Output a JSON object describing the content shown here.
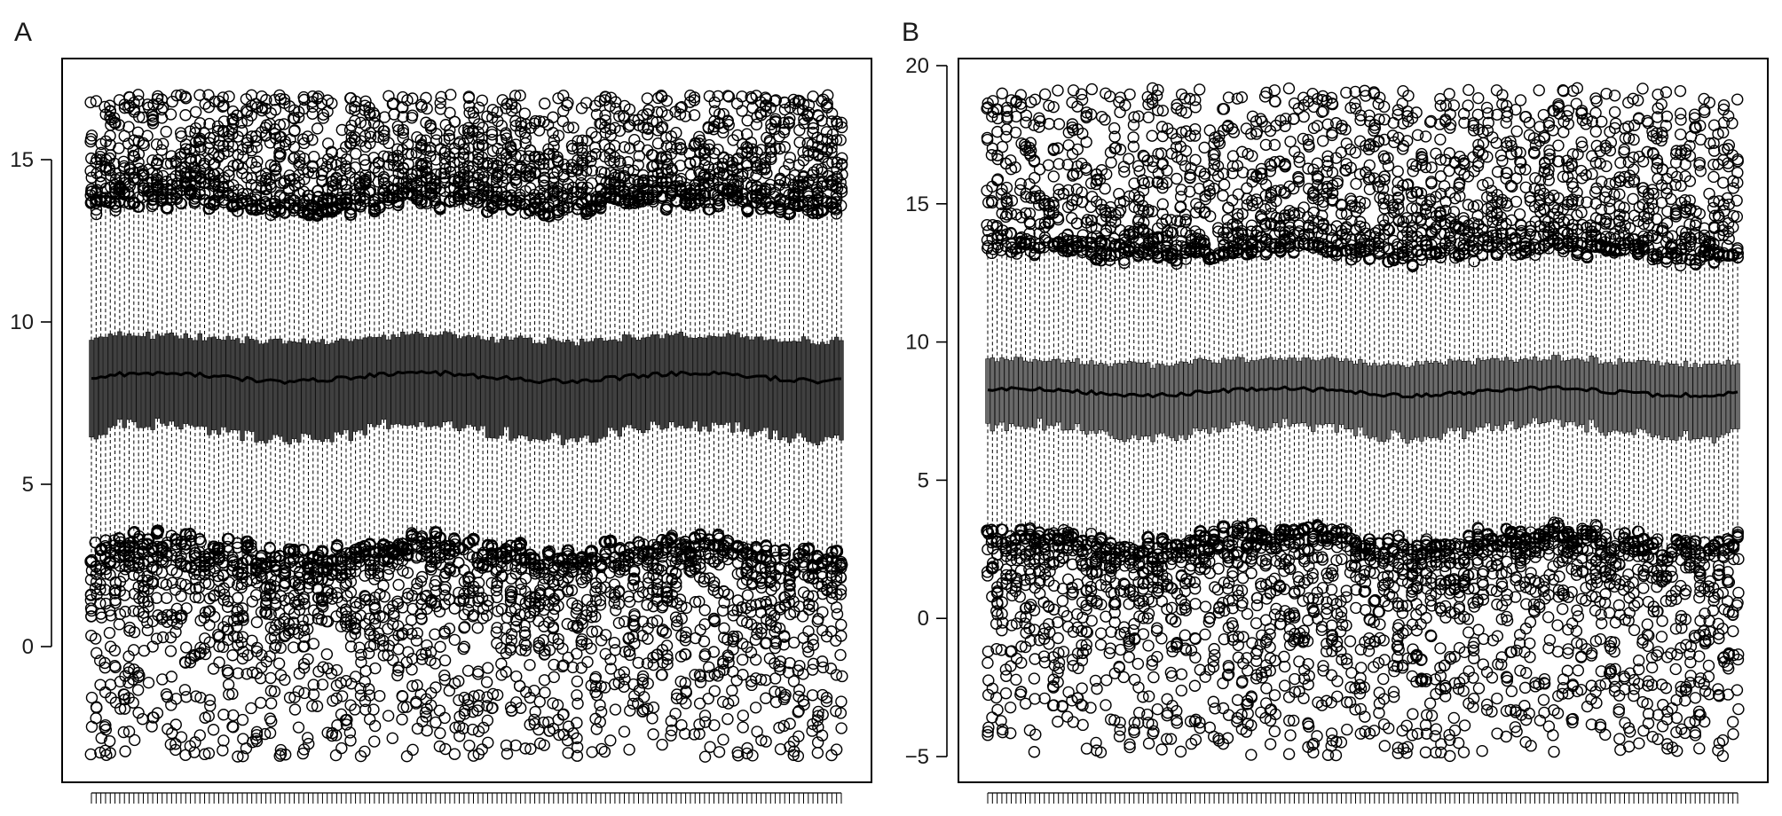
{
  "chart_data": [
    {
      "panel_label": "A",
      "type": "box",
      "n_boxes": 160,
      "ylim": [
        -3.8,
        17.3
      ],
      "y_ticks": [
        0,
        5,
        10,
        15
      ],
      "y_tick_labels": [
        "0",
        "5",
        "10",
        "15"
      ],
      "typical_box": {
        "median": 8.3,
        "q1": 6.6,
        "q3": 9.5,
        "whisker_low": 3.0,
        "whisker_high": 13.6,
        "upper_outliers_range": [
          13.6,
          17.0
        ],
        "lower_outliers_range": [
          -3.4,
          3.4
        ]
      },
      "colors": {
        "box_fill": "#404040",
        "ink": "#000000"
      }
    },
    {
      "panel_label": "B",
      "type": "box",
      "n_boxes": 160,
      "ylim": [
        -5.5,
        20.2
      ],
      "y_ticks": [
        -5,
        0,
        5,
        10,
        15,
        20
      ],
      "y_tick_labels": [
        "−5",
        "0",
        "5",
        "10",
        "15",
        "20"
      ],
      "typical_box": {
        "median": 8.2,
        "q1": 6.8,
        "q3": 9.3,
        "whisker_low": 2.9,
        "whisker_high": 13.2,
        "upper_outliers_range": [
          13.2,
          19.2
        ],
        "lower_outliers_range": [
          -5.0,
          2.9
        ]
      },
      "colors": {
        "box_fill": "#6a6a6a",
        "ink": "#000000"
      }
    }
  ]
}
